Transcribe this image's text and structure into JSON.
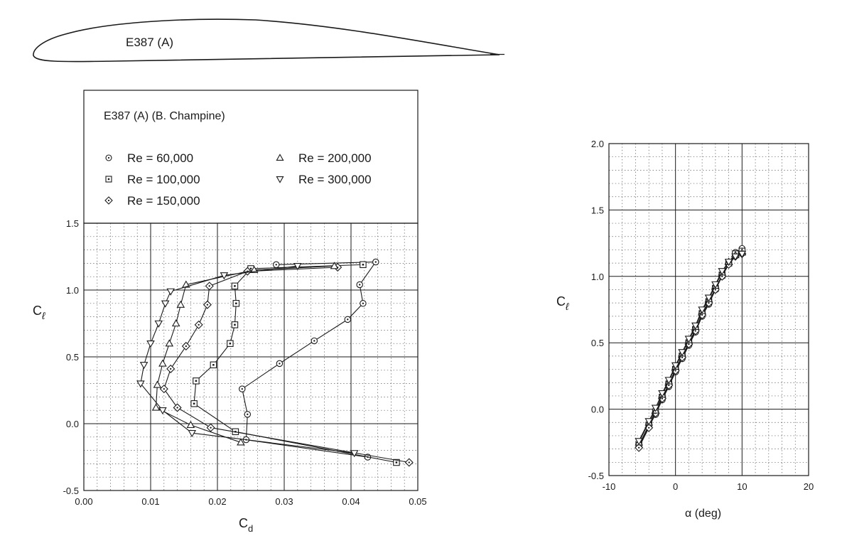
{
  "airfoil": {
    "label": "E387 (A)"
  },
  "chart_data": [
    {
      "type": "line",
      "title": "E387 (A)  (B. Champine)",
      "xlabel": "C",
      "xlabel_sub": "d",
      "ylabel": "C",
      "ylabel_sub": "ℓ",
      "xlim": [
        0.0,
        0.05
      ],
      "ylim": [
        -0.5,
        1.5
      ],
      "xticks": [
        0.0,
        0.01,
        0.02,
        0.03,
        0.04,
        0.05
      ],
      "xtick_labels": [
        "0.00",
        "0.01",
        "0.02",
        "0.03",
        "0.04",
        "0.05"
      ],
      "yticks": [
        -0.5,
        0.0,
        0.5,
        1.0,
        1.5
      ],
      "ytick_labels": [
        "-0.5",
        "0.0",
        "0.5",
        "1.0",
        "1.5"
      ],
      "grid": true,
      "legend_position": "top",
      "series": [
        {
          "name": "Re = 60,000",
          "marker": "circle",
          "x": [
            0.0425,
            0.0243,
            0.0245,
            0.0237,
            0.0293,
            0.0345,
            0.0395,
            0.0418,
            0.0413,
            0.0437,
            0.0288
          ],
          "y": [
            -0.25,
            -0.12,
            0.07,
            0.26,
            0.45,
            0.62,
            0.78,
            0.9,
            1.04,
            1.21,
            1.19
          ]
        },
        {
          "name": "Re = 100,000",
          "marker": "square",
          "x": [
            0.0468,
            0.0227,
            0.0165,
            0.0168,
            0.0194,
            0.0219,
            0.0226,
            0.0228,
            0.0226,
            0.025,
            0.0418
          ],
          "y": [
            -0.29,
            -0.06,
            0.15,
            0.32,
            0.44,
            0.6,
            0.74,
            0.9,
            1.03,
            1.16,
            1.19
          ]
        },
        {
          "name": "Re = 150,000",
          "marker": "diamond",
          "x": [
            0.0487,
            0.019,
            0.014,
            0.012,
            0.013,
            0.0153,
            0.0172,
            0.0185,
            0.0188,
            0.0245,
            0.038
          ],
          "y": [
            -0.29,
            -0.03,
            0.12,
            0.26,
            0.41,
            0.58,
            0.74,
            0.89,
            1.03,
            1.14,
            1.17
          ]
        },
        {
          "name": "Re = 200,000",
          "marker": "triangle-up",
          "x": [
            0.0235,
            0.016,
            0.0108,
            0.011,
            0.0118,
            0.0128,
            0.0138,
            0.0145,
            0.0153,
            0.0255,
            0.0375
          ],
          "y": [
            -0.14,
            -0.01,
            0.12,
            0.29,
            0.45,
            0.6,
            0.75,
            0.89,
            1.04,
            1.15,
            1.18
          ]
        },
        {
          "name": "Re = 300,000",
          "marker": "triangle-down",
          "x": [
            0.0405,
            0.0162,
            0.0118,
            0.0085,
            0.009,
            0.01,
            0.0112,
            0.0122,
            0.013,
            0.021,
            0.032
          ],
          "y": [
            -0.22,
            -0.07,
            0.1,
            0.3,
            0.44,
            0.6,
            0.75,
            0.9,
            0.99,
            1.11,
            1.18
          ]
        }
      ]
    },
    {
      "type": "line",
      "xlabel": "α  (deg)",
      "ylabel": "C",
      "ylabel_sub": "ℓ",
      "xlim": [
        -10,
        20
      ],
      "ylim": [
        -0.5,
        2.0
      ],
      "xticks": [
        -10,
        0,
        10,
        20
      ],
      "xtick_labels": [
        "-10",
        "0",
        "10",
        "20"
      ],
      "yticks": [
        -0.5,
        0.0,
        0.5,
        1.0,
        1.5,
        2.0
      ],
      "ytick_labels": [
        "-0.5",
        "0.0",
        "0.5",
        "1.0",
        "1.5",
        "2.0"
      ],
      "grid": true,
      "series": [
        {
          "name": "Re = 60,000",
          "marker": "circle",
          "x": [
            -5.5,
            -4.0,
            -3.0,
            -2.0,
            -1.0,
            0.0,
            1.0,
            2.0,
            3.0,
            4.0,
            5.0,
            6.0,
            7.0,
            8.0,
            9.0,
            10.0
          ],
          "y": [
            -0.28,
            -0.13,
            -0.04,
            0.07,
            0.17,
            0.28,
            0.38,
            0.48,
            0.58,
            0.7,
            0.79,
            0.9,
            1.0,
            1.1,
            1.18,
            1.21
          ]
        },
        {
          "name": "Re = 100,000",
          "marker": "square",
          "x": [
            -5.5,
            -4.0,
            -3.0,
            -2.0,
            -1.0,
            0.0,
            1.0,
            2.0,
            3.0,
            4.0,
            5.0,
            6.0,
            7.0,
            8.0,
            9.0,
            10.0
          ],
          "y": [
            -0.27,
            -0.12,
            -0.02,
            0.09,
            0.19,
            0.3,
            0.4,
            0.5,
            0.6,
            0.72,
            0.81,
            0.91,
            1.01,
            1.1,
            1.17,
            1.19
          ]
        },
        {
          "name": "Re = 150,000",
          "marker": "diamond",
          "x": [
            -5.5,
            -4.0,
            -3.0,
            -2.0,
            -1.0,
            0.0,
            1.0,
            2.0,
            3.0,
            4.0,
            5.0,
            6.0,
            7.0,
            8.0,
            9.0,
            10.0
          ],
          "y": [
            -0.29,
            -0.14,
            -0.03,
            0.08,
            0.18,
            0.29,
            0.39,
            0.49,
            0.59,
            0.71,
            0.8,
            0.9,
            1.0,
            1.09,
            1.15,
            1.17
          ]
        },
        {
          "name": "Re = 200,000",
          "marker": "triangle-up",
          "x": [
            -5.5,
            -4.0,
            -3.0,
            -2.0,
            -1.0,
            0.0,
            1.0,
            2.0,
            3.0,
            4.0,
            5.0,
            6.0,
            7.0,
            8.0,
            9.0,
            10.0
          ],
          "y": [
            -0.25,
            -0.1,
            -0.01,
            0.11,
            0.21,
            0.32,
            0.42,
            0.52,
            0.62,
            0.74,
            0.83,
            0.93,
            1.03,
            1.11,
            1.16,
            1.18
          ]
        },
        {
          "name": "Re = 300,000",
          "marker": "triangle-down",
          "x": [
            -5.5,
            -4.0,
            -3.0,
            -2.0,
            -1.0,
            0.0,
            1.0,
            2.0,
            3.0,
            4.0,
            5.0,
            6.0,
            7.0,
            8.0,
            9.0,
            10.0
          ],
          "y": [
            -0.24,
            -0.09,
            0.01,
            0.12,
            0.22,
            0.33,
            0.43,
            0.53,
            0.63,
            0.75,
            0.84,
            0.94,
            1.04,
            1.11,
            1.15,
            1.17
          ]
        }
      ]
    }
  ]
}
